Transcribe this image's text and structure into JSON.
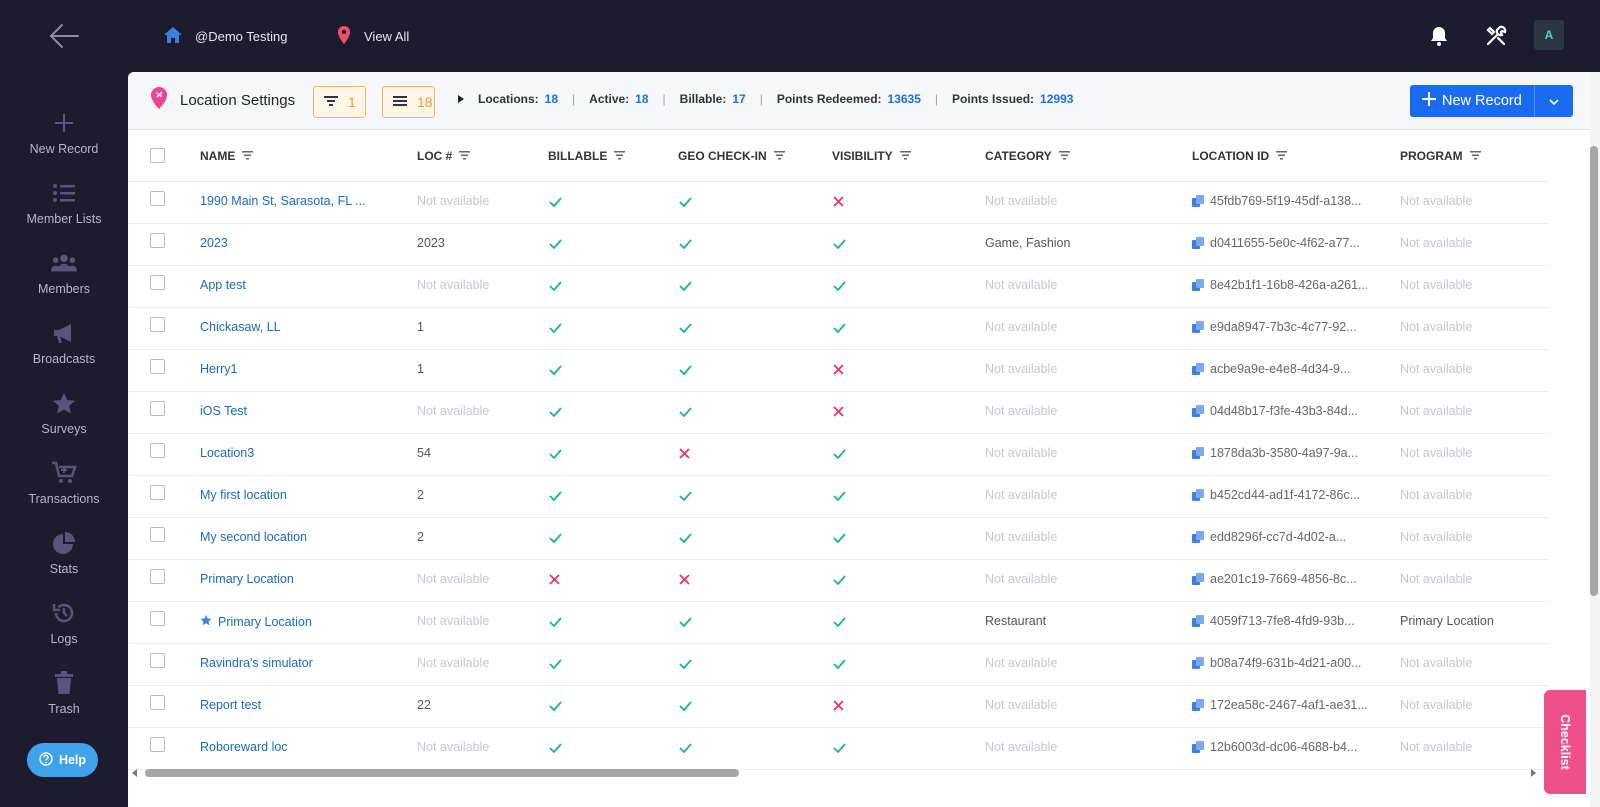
{
  "topbar": {
    "org": "@Demo Testing",
    "location_filter": "View All",
    "avatar_initial": "A"
  },
  "sidebar": {
    "items": [
      {
        "label": "New Record",
        "icon": "plus-icon"
      },
      {
        "label": "Member Lists",
        "icon": "list-icon"
      },
      {
        "label": "Members",
        "icon": "users-icon"
      },
      {
        "label": "Broadcasts",
        "icon": "megaphone-icon"
      },
      {
        "label": "Surveys",
        "icon": "star-icon"
      },
      {
        "label": "Transactions",
        "icon": "cart-icon"
      },
      {
        "label": "Stats",
        "icon": "pie-chart-icon"
      },
      {
        "label": "Logs",
        "icon": "history-icon"
      },
      {
        "label": "Trash",
        "icon": "trash-icon"
      }
    ],
    "help_label": "Help"
  },
  "header": {
    "title": "Location Settings",
    "filter_count": "1",
    "list_count": "18",
    "stats": {
      "locations_label": "Locations:",
      "locations": "18",
      "active_label": "Active:",
      "active": "18",
      "billable_label": "Billable:",
      "billable": "17",
      "redeemed_label": "Points Redeemed:",
      "redeemed": "13635",
      "issued_label": "Points Issued:",
      "issued": "12993"
    },
    "new_record_label": "New Record"
  },
  "table": {
    "columns": [
      "NAME",
      "LOC #",
      "BILLABLE",
      "GEO CHECK-IN",
      "VISIBILITY",
      "CATEGORY",
      "LOCATION ID",
      "PROGRAM"
    ],
    "rows": [
      {
        "name": "1990 Main St, Sarasota, FL ...",
        "loc": "Not available",
        "billable": true,
        "geo": true,
        "visible": false,
        "category": "Not available",
        "id": "45fdb769-5f19-45df-a138...",
        "program": "Not available",
        "star": false
      },
      {
        "name": "2023",
        "loc": "2023",
        "billable": true,
        "geo": true,
        "visible": true,
        "category": "Game, Fashion",
        "id": "d0411655-5e0c-4f62-a77...",
        "program": "Not available",
        "star": false
      },
      {
        "name": "App test",
        "loc": "Not available",
        "billable": true,
        "geo": true,
        "visible": true,
        "category": "Not available",
        "id": "8e42b1f1-16b8-426a-a261...",
        "program": "Not available",
        "star": false
      },
      {
        "name": "Chickasaw, LL",
        "loc": "1",
        "billable": true,
        "geo": true,
        "visible": true,
        "category": "Not available",
        "id": "e9da8947-7b3c-4c77-92...",
        "program": "Not available",
        "star": false
      },
      {
        "name": "Herry1",
        "loc": "1",
        "billable": true,
        "geo": true,
        "visible": false,
        "category": "Not available",
        "id": "acbe9a9e-e4e8-4d34-9...",
        "program": "Not available",
        "star": false
      },
      {
        "name": "iOS Test",
        "loc": "Not available",
        "billable": true,
        "geo": true,
        "visible": false,
        "category": "Not available",
        "id": "04d48b17-f3fe-43b3-84d...",
        "program": "Not available",
        "star": false
      },
      {
        "name": "Location3",
        "loc": "54",
        "billable": true,
        "geo": false,
        "visible": true,
        "category": "Not available",
        "id": "1878da3b-3580-4a97-9a...",
        "program": "Not available",
        "star": false
      },
      {
        "name": "My first location",
        "loc": "2",
        "billable": true,
        "geo": true,
        "visible": true,
        "category": "Not available",
        "id": "b452cd44-ad1f-4172-86c...",
        "program": "Not available",
        "star": false
      },
      {
        "name": "My second location",
        "loc": "2",
        "billable": true,
        "geo": true,
        "visible": true,
        "category": "Not available",
        "id": "edd8296f-cc7d-4d02-a...",
        "program": "Not available",
        "star": false
      },
      {
        "name": "Primary Location",
        "loc": "Not available",
        "billable": false,
        "geo": false,
        "visible": true,
        "category": "Not available",
        "id": "ae201c19-7669-4856-8c...",
        "program": "Not available",
        "star": false
      },
      {
        "name": "Primary Location",
        "loc": "Not available",
        "billable": true,
        "geo": true,
        "visible": true,
        "category": "Restaurant",
        "id": "4059f713-7fe8-4fd9-93b...",
        "program": "Primary Location",
        "star": true
      },
      {
        "name": "Ravindra's simulator",
        "loc": "Not available",
        "billable": true,
        "geo": true,
        "visible": true,
        "category": "Not available",
        "id": "b08a74f9-631b-4d21-a00...",
        "program": "Not available",
        "star": false
      },
      {
        "name": "Report test",
        "loc": "22",
        "billable": true,
        "geo": true,
        "visible": false,
        "category": "Not available",
        "id": "172ea58c-2467-4af1-ae31...",
        "program": "Not available",
        "star": false
      },
      {
        "name": "Roboreward loc",
        "loc": "Not available",
        "billable": true,
        "geo": true,
        "visible": true,
        "category": "Not available",
        "id": "12b6003d-dc06-4688-b4...",
        "program": "Not available",
        "star": false
      }
    ]
  },
  "checklist_label": "Checklist",
  "colors": {
    "check": "#1ab394",
    "cross": "#e8336d",
    "link": "#1a6bb5",
    "accent": "#1a6bef",
    "orange": "#e99a30"
  }
}
